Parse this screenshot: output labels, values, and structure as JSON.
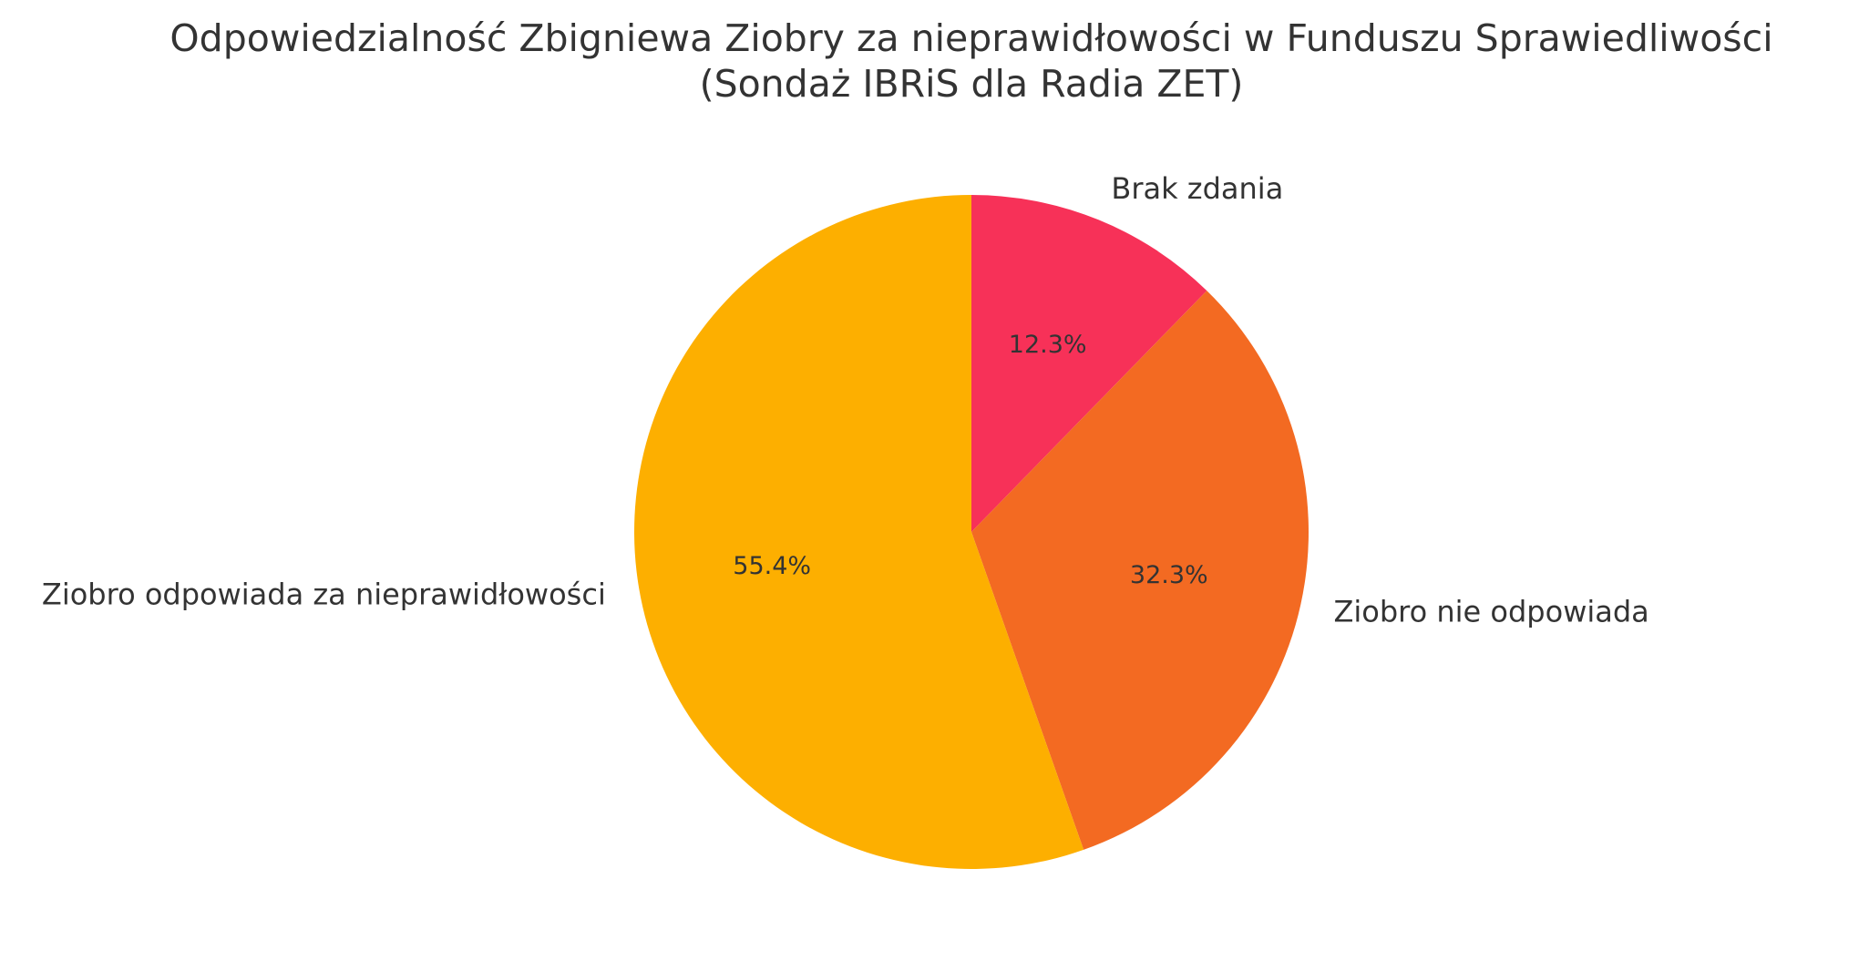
{
  "chart_data": {
    "type": "pie",
    "title": "Odpowiedzialność Zbigniewa Ziobry za nieprawidłowości w Funduszu Sprawiedliwości",
    "subtitle": "(Sondaż IBRiS dla Radia ZET)",
    "start_angle_deg": 90,
    "direction": "clockwise",
    "slices": [
      {
        "label": "Brak zdania",
        "value": 12.3,
        "pct_label": "12.3%",
        "color": "#F73158"
      },
      {
        "label": "Ziobro nie odpowiada",
        "value": 32.3,
        "pct_label": "32.3%",
        "color": "#F36A22"
      },
      {
        "label": "Ziobro odpowiada za nieprawidłowości",
        "value": 55.4,
        "pct_label": "55.4%",
        "color": "#FDAF00"
      }
    ]
  }
}
